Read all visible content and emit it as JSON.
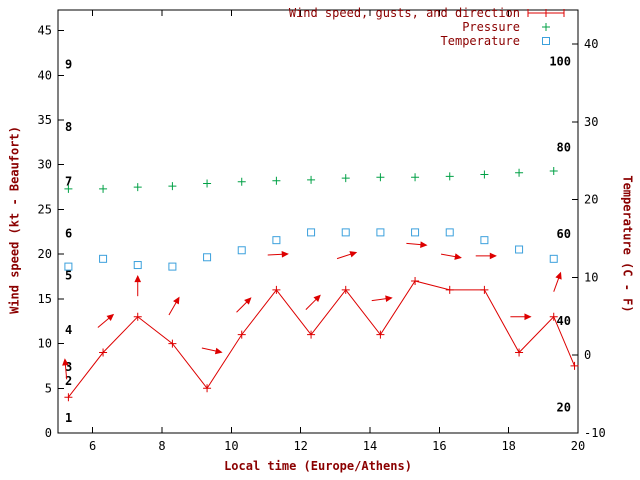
{
  "figure": {
    "background": "#ffffff",
    "colors": {
      "wind": "#dd0000",
      "pressure": "#00a045",
      "temperature": "#3ba0dc",
      "axis_title": "#8b0000",
      "legend_text": "#8b0000",
      "tick_label": "#000000",
      "border": "#000000"
    }
  },
  "chart_data": {
    "type": "line",
    "title": "",
    "xlabel": "Local time (Europe/Athens)",
    "ylabel_left": "Wind speed (kt - Beaufort)",
    "ylabel_right": "Temperature (C - F)",
    "xlim": [
      5,
      20
    ],
    "ylim_left": [
      0,
      47.3
    ],
    "ylim_right": [
      -10,
      44.4
    ],
    "grid": false,
    "legend_position": "top-right-inside",
    "x_ticks": [
      6,
      8,
      10,
      12,
      14,
      16,
      18,
      20
    ],
    "y_ticks_left": [
      0,
      5,
      10,
      15,
      20,
      25,
      30,
      35,
      40,
      45
    ],
    "y_ticks_right": [
      -10,
      0,
      10,
      20,
      30,
      40
    ],
    "beaufort_labels": [
      {
        "label": "1",
        "kt": 1.7
      },
      {
        "label": "2",
        "kt": 5.8
      },
      {
        "label": "3",
        "kt": 7.4
      },
      {
        "label": "4",
        "kt": 11.5
      },
      {
        "label": "5",
        "kt": 17.6
      },
      {
        "label": "6",
        "kt": 22.3
      },
      {
        "label": "7",
        "kt": 28.1
      },
      {
        "label": "8",
        "kt": 34.2
      },
      {
        "label": "9",
        "kt": 41.2
      }
    ],
    "fahrenheit_labels": [
      {
        "label": "20",
        "c": -6.7
      },
      {
        "label": "40",
        "c": 4.4
      },
      {
        "label": "60",
        "c": 15.6
      },
      {
        "label": "80",
        "c": 26.7
      },
      {
        "label": "100",
        "c": 37.8
      }
    ],
    "legend": [
      {
        "label": "Wind speed, gusts, and direction",
        "series": "wind",
        "marker": "errorline-plus"
      },
      {
        "label": "Pressure",
        "series": "pressure",
        "marker": "plus"
      },
      {
        "label": "Temperature",
        "series": "temperature",
        "marker": "open-square"
      }
    ],
    "series": {
      "wind_speed": {
        "x": [
          5.3,
          6.3,
          7.3,
          8.3,
          9.3,
          10.3,
          11.3,
          12.3,
          13.3,
          14.3,
          15.3,
          16.3,
          17.3,
          18.3,
          19.3,
          19.9
        ],
        "kt": [
          4,
          9,
          13,
          10,
          5,
          11,
          16,
          11,
          16,
          11,
          17,
          16,
          16,
          9,
          13,
          7.5
        ]
      },
      "wind_direction_arrows": [
        {
          "x": 5.25,
          "kt": 6.0,
          "angle_deg": 95
        },
        {
          "x": 6.15,
          "kt": 11.8,
          "angle_deg": 40
        },
        {
          "x": 7.3,
          "kt": 15.3,
          "angle_deg": 90
        },
        {
          "x": 8.2,
          "kt": 13.2,
          "angle_deg": 60
        },
        {
          "x": 9.15,
          "kt": 9.5,
          "angle_deg": -12
        },
        {
          "x": 10.15,
          "kt": 13.5,
          "angle_deg": 45
        },
        {
          "x": 11.05,
          "kt": 19.9,
          "angle_deg": 3
        },
        {
          "x": 12.15,
          "kt": 13.8,
          "angle_deg": 45
        },
        {
          "x": 13.05,
          "kt": 19.5,
          "angle_deg": 18
        },
        {
          "x": 14.05,
          "kt": 14.8,
          "angle_deg": 8
        },
        {
          "x": 15.05,
          "kt": 21.2,
          "angle_deg": -5
        },
        {
          "x": 16.05,
          "kt": 20.0,
          "angle_deg": -10
        },
        {
          "x": 17.05,
          "kt": 19.8,
          "angle_deg": 0
        },
        {
          "x": 18.05,
          "kt": 13.0,
          "angle_deg": 0
        },
        {
          "x": 19.3,
          "kt": 15.8,
          "angle_deg": 70
        }
      ],
      "pressure": {
        "x": [
          5.3,
          6.3,
          7.3,
          8.3,
          9.3,
          10.3,
          11.3,
          12.3,
          13.3,
          14.3,
          15.3,
          16.3,
          17.3,
          18.3,
          19.3
        ],
        "y_plotted_left_axis": [
          27.3,
          27.3,
          27.5,
          27.6,
          27.9,
          28.1,
          28.2,
          28.3,
          28.5,
          28.6,
          28.6,
          28.7,
          28.9,
          29.1,
          29.3
        ]
      },
      "temperature": {
        "x": [
          5.3,
          6.3,
          7.3,
          8.3,
          9.3,
          10.3,
          11.3,
          12.3,
          13.3,
          14.3,
          15.3,
          16.3,
          17.3,
          18.3,
          19.3
        ],
        "c": [
          11.4,
          12.4,
          11.6,
          11.4,
          12.6,
          13.5,
          14.8,
          15.8,
          15.8,
          15.8,
          15.8,
          15.8,
          14.8,
          13.6,
          12.4
        ]
      }
    }
  }
}
